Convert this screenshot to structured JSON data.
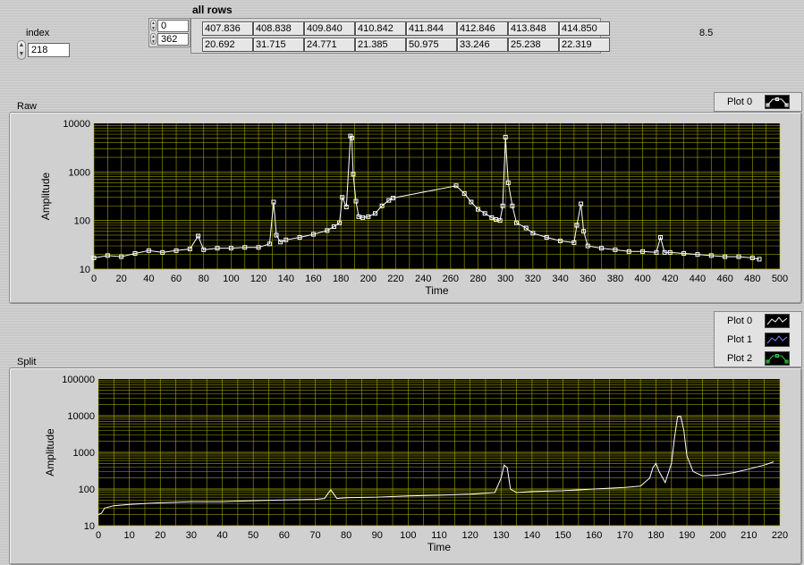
{
  "index": {
    "label": "index",
    "value": "218"
  },
  "all_rows": {
    "label": "all rows",
    "row_index": [
      "0",
      "362"
    ],
    "rows": [
      [
        "407.836",
        "408.838",
        "409.840",
        "410.842",
        "411.844",
        "412.846",
        "413.848",
        "414.850"
      ],
      [
        "20.692",
        "31.715",
        "24.771",
        "21.385",
        "50.975",
        "33.246",
        "25.238",
        "22.319"
      ]
    ]
  },
  "readout": "8.5",
  "colors": {
    "plot_bg": "#000000",
    "grid": "#b8b800",
    "trace_white": "#ffffff",
    "trace_blue": "#7f8bff",
    "trace_green": "#2ecc40"
  },
  "icons": [
    "spin-up-down-icon",
    "plot-swatch-icon"
  ],
  "chart_data": [
    {
      "type": "line",
      "title": "Raw",
      "xlabel": "Time",
      "ylabel": "Amplitude",
      "xlim": [
        0,
        500
      ],
      "ylim": [
        10,
        10000
      ],
      "y_scale": "log",
      "grid": true,
      "markers": "square",
      "x_ticks": [
        "0",
        "20",
        "40",
        "60",
        "80",
        "100",
        "120",
        "140",
        "160",
        "180",
        "200",
        "220",
        "240",
        "260",
        "280",
        "300",
        "320",
        "340",
        "360",
        "380",
        "400",
        "420",
        "440",
        "460",
        "480",
        "500"
      ],
      "y_ticks": [
        "10",
        "100",
        "1000",
        "10000"
      ],
      "legend": {
        "placement": "top-right",
        "entries": [
          "Plot 0"
        ]
      },
      "series": [
        {
          "name": "Plot 0",
          "x": [
            0,
            10,
            20,
            30,
            40,
            50,
            60,
            70,
            76,
            80,
            90,
            100,
            110,
            120,
            128,
            131,
            133,
            136,
            140,
            150,
            160,
            170,
            175,
            179,
            181,
            184,
            187,
            188,
            189,
            191,
            193,
            196,
            200,
            205,
            210,
            215,
            218,
            264,
            270,
            275,
            280,
            285,
            290,
            293,
            296,
            298,
            300,
            302,
            305,
            308,
            315,
            320,
            330,
            340,
            350,
            352,
            355,
            357,
            360,
            370,
            380,
            390,
            400,
            410,
            413,
            416,
            420,
            430,
            440,
            450,
            460,
            470,
            480,
            485
          ],
          "y": [
            17,
            19,
            18,
            21,
            24,
            22,
            24,
            26,
            48,
            25,
            27,
            27,
            28,
            28,
            33,
            240,
            50,
            36,
            40,
            45,
            52,
            62,
            75,
            90,
            300,
            190,
            5500,
            5000,
            900,
            250,
            120,
            115,
            120,
            140,
            200,
            260,
            290,
            520,
            360,
            240,
            170,
            140,
            115,
            105,
            100,
            200,
            5200,
            600,
            200,
            90,
            70,
            55,
            45,
            38,
            35,
            80,
            220,
            60,
            30,
            27,
            25,
            23,
            23,
            22,
            45,
            22,
            22,
            21,
            20,
            19,
            18,
            18,
            17,
            16
          ]
        }
      ]
    },
    {
      "type": "line",
      "title": "Split",
      "xlabel": "Time",
      "ylabel": "Amplitude",
      "xlim": [
        0,
        220
      ],
      "ylim": [
        10,
        100000
      ],
      "y_scale": "log",
      "grid": true,
      "x_ticks": [
        "0",
        "10",
        "20",
        "30",
        "40",
        "50",
        "60",
        "70",
        "80",
        "90",
        "100",
        "110",
        "120",
        "130",
        "140",
        "150",
        "160",
        "170",
        "180",
        "190",
        "200",
        "210",
        "220"
      ],
      "y_ticks": [
        "10",
        "100",
        "1000",
        "10000",
        "100000"
      ],
      "legend": {
        "placement": "top-right",
        "entries": [
          "Plot 0",
          "Plot 1",
          "Plot 2"
        ]
      },
      "series": [
        {
          "name": "Plot 0",
          "x": [
            0,
            1,
            2,
            5,
            10,
            15,
            20,
            30,
            40,
            50,
            60,
            70,
            73,
            75,
            77,
            80,
            90,
            100,
            110,
            120,
            128,
            130,
            131,
            132,
            133,
            135,
            140,
            150,
            160,
            170,
            175,
            178,
            179,
            180,
            181,
            183,
            185,
            186,
            187,
            188,
            189,
            190,
            192,
            195,
            200,
            205,
            210,
            215,
            218
          ],
          "y": [
            20,
            22,
            30,
            35,
            38,
            40,
            42,
            45,
            45,
            48,
            50,
            52,
            55,
            95,
            55,
            58,
            60,
            65,
            68,
            72,
            80,
            200,
            450,
            380,
            100,
            80,
            85,
            90,
            100,
            110,
            120,
            200,
            380,
            500,
            300,
            150,
            500,
            2500,
            9500,
            9500,
            4000,
            800,
            300,
            230,
            240,
            280,
            350,
            450,
            550
          ]
        }
      ]
    }
  ]
}
